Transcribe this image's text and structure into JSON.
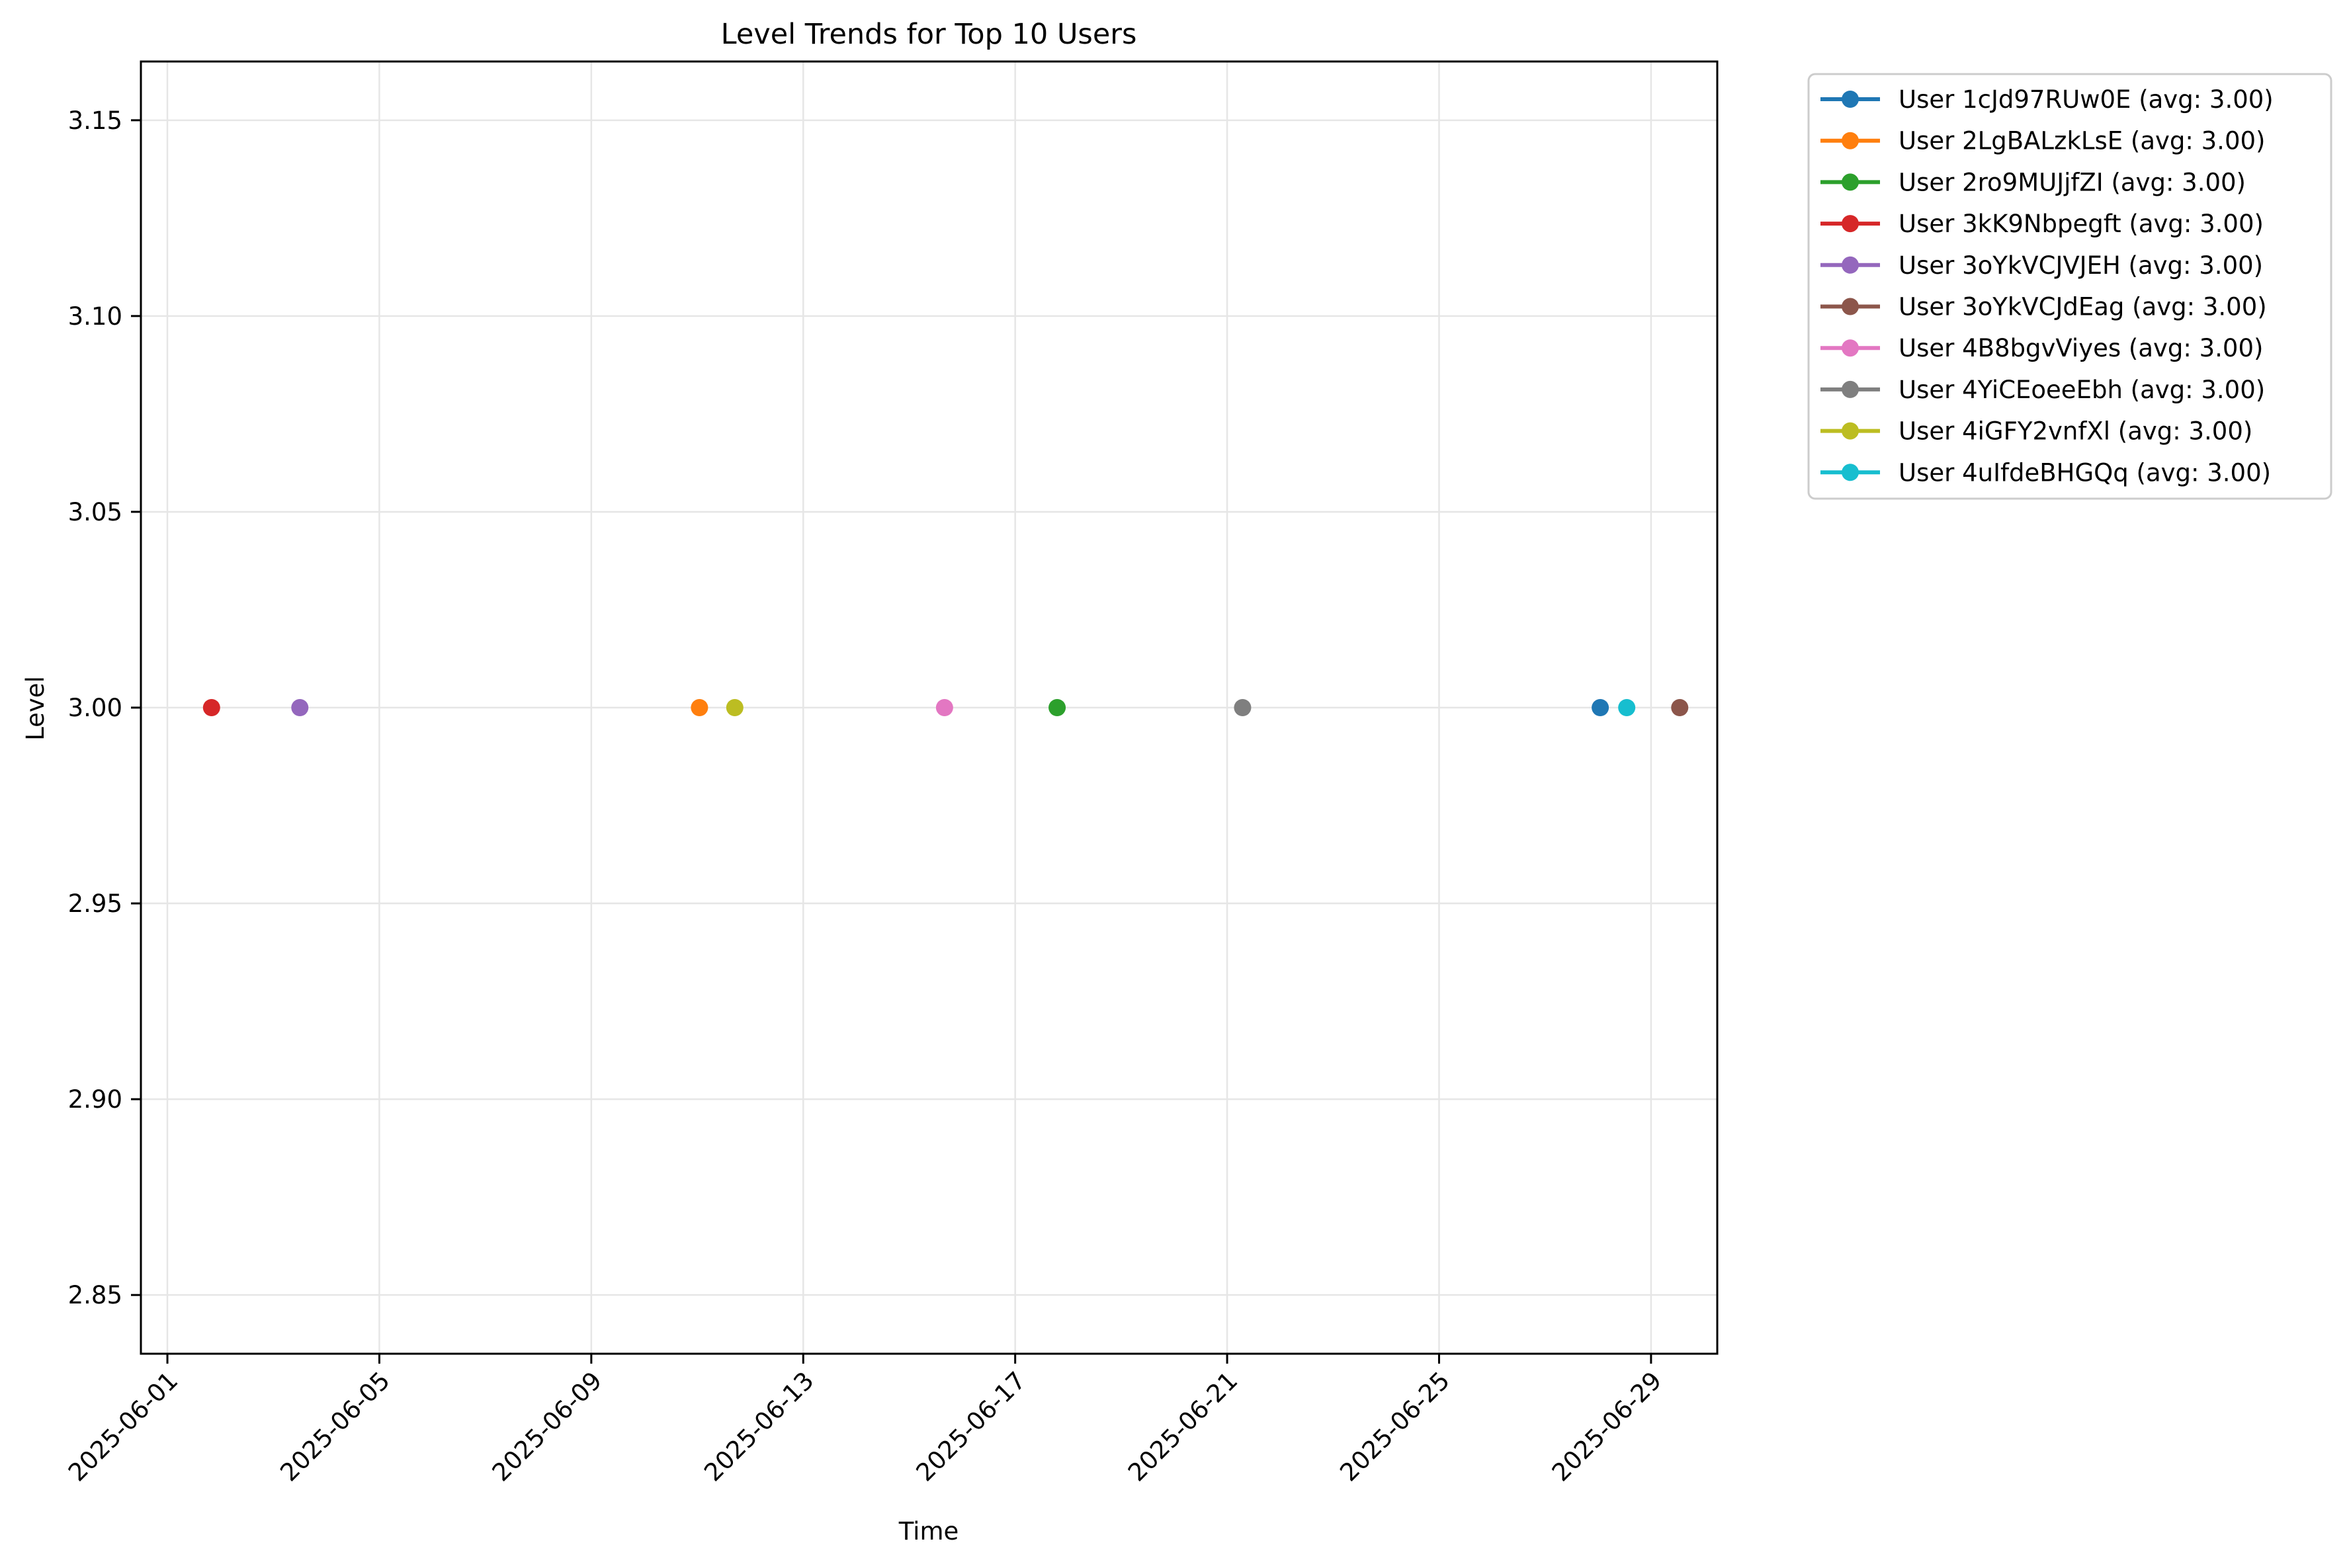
{
  "chart_data": {
    "type": "scatter",
    "title": "Level Trends for Top 10 Users",
    "xlabel": "Time",
    "ylabel": "Level",
    "x_tick_labels": [
      "2025-06-01",
      "2025-06-05",
      "2025-06-09",
      "2025-06-13",
      "2025-06-17",
      "2025-06-21",
      "2025-06-25",
      "2025-06-29"
    ],
    "y_tick_labels": [
      "2.85",
      "2.90",
      "2.95",
      "3.00",
      "3.05",
      "3.10",
      "3.15"
    ],
    "y_ticks": [
      2.85,
      2.9,
      2.95,
      3.0,
      3.05,
      3.1,
      3.15
    ],
    "ylim": [
      2.835,
      3.165
    ],
    "xlim": [
      "2025-05-31T12:00",
      "2025-06-30T06:00"
    ],
    "grid": true,
    "legend_position": "outside upper right",
    "series": [
      {
        "name": "User 1cJd97RUw0E (avg: 3.00)",
        "color": "#1f77b4",
        "points": [
          {
            "x": "2025-06-28T01:00",
            "y": 3.0
          }
        ]
      },
      {
        "name": "User 2LgBALzkLsE (avg: 3.00)",
        "color": "#ff7f0e",
        "points": [
          {
            "x": "2025-06-11T01:00",
            "y": 3.0
          }
        ]
      },
      {
        "name": "User 2ro9MUJjfZI (avg: 3.00)",
        "color": "#2ca02c",
        "points": [
          {
            "x": "2025-06-17T19:00",
            "y": 3.0
          }
        ]
      },
      {
        "name": "User 3kK9Nbpegft (avg: 3.00)",
        "color": "#d62728",
        "points": [
          {
            "x": "2025-06-01T20:00",
            "y": 3.0
          }
        ]
      },
      {
        "name": "User 3oYkVCJVJEH (avg: 3.00)",
        "color": "#9467bd",
        "points": [
          {
            "x": "2025-06-03T12:00",
            "y": 3.0
          }
        ]
      },
      {
        "name": "User 3oYkVCJdEag (avg: 3.00)",
        "color": "#8c564b",
        "points": [
          {
            "x": "2025-06-29T13:00",
            "y": 3.0
          }
        ]
      },
      {
        "name": "User 4B8bgvViyes (avg: 3.00)",
        "color": "#e377c2",
        "points": [
          {
            "x": "2025-06-15T16:00",
            "y": 3.0
          }
        ]
      },
      {
        "name": "User 4YiCEoeeEbh (avg: 3.00)",
        "color": "#7f7f7f",
        "points": [
          {
            "x": "2025-06-21T07:00",
            "y": 3.0
          }
        ]
      },
      {
        "name": "User 4iGFY2vnfXl (avg: 3.00)",
        "color": "#bcbd22",
        "points": [
          {
            "x": "2025-06-11T17:00",
            "y": 3.0
          }
        ]
      },
      {
        "name": "User 4uIfdeBHGQq (avg: 3.00)",
        "color": "#17becf",
        "points": [
          {
            "x": "2025-06-28T13:00",
            "y": 3.0
          }
        ]
      }
    ]
  }
}
